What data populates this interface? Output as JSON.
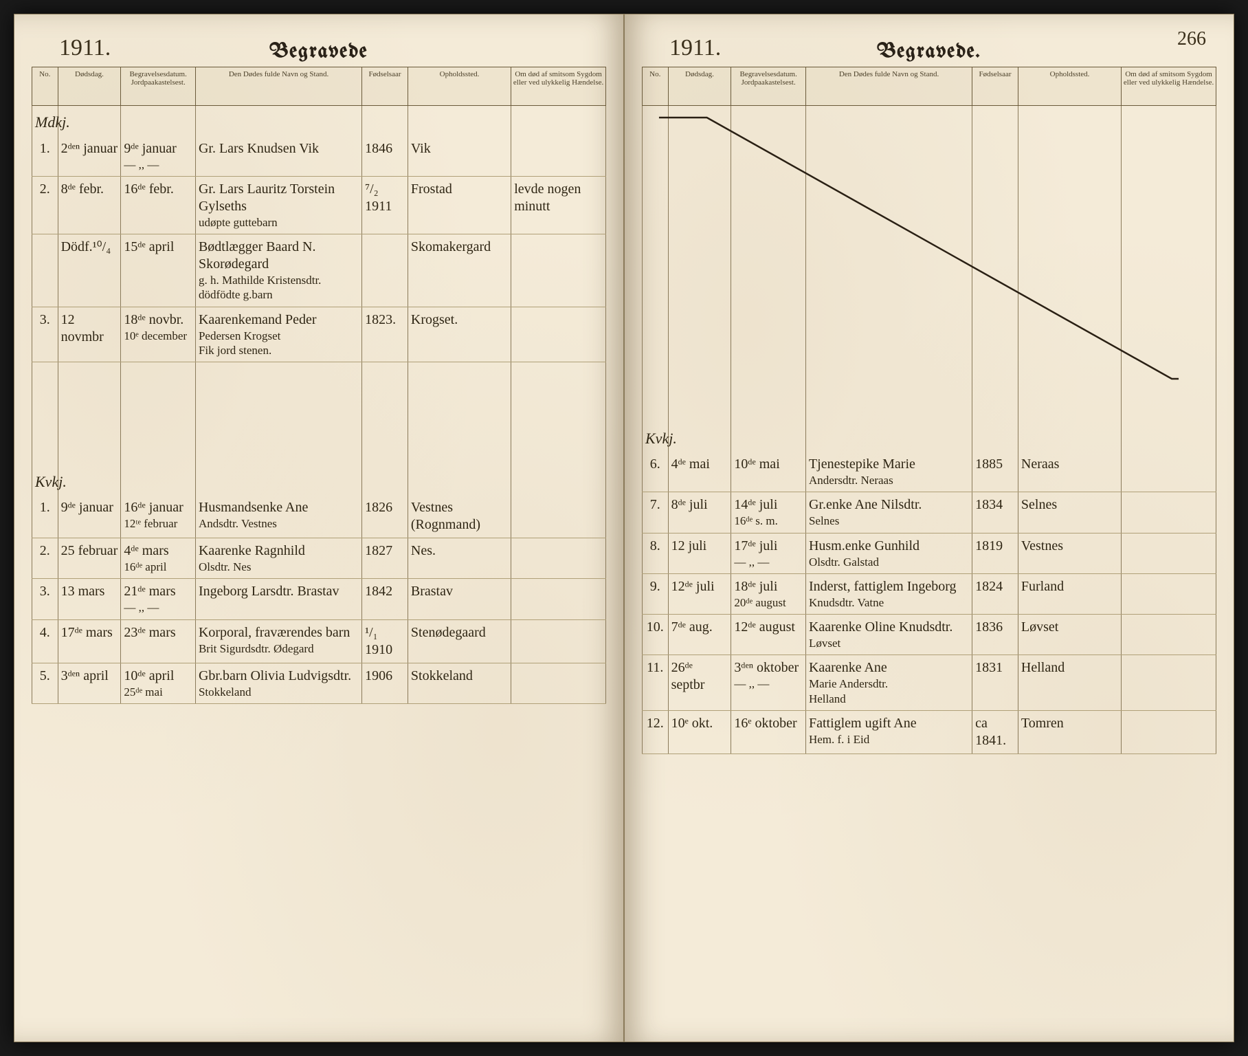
{
  "page_number": "266",
  "left": {
    "year": "1911.",
    "title": "Begravede",
    "columns": [
      "No.",
      "Dødsdag.",
      "Begravelsesdatum. Jordpaakastelsest.",
      "Den Dødes fulde Navn og Stand.",
      "Fødselsaar",
      "Opholdssted.",
      "Om død af smitsom Sygdom eller ved ulykke­lig Hændelse."
    ],
    "section1_label": "Mdkj.",
    "section1_rows": [
      {
        "no": "1.",
        "death": "2ᵈᵉⁿ januar",
        "burial": "9ᵈᵉ januar\n— ,, —",
        "name": "Gr. Lars Knudsen Vik",
        "year": "1846",
        "place": "Vik",
        "rem": ""
      },
      {
        "no": "2.",
        "death": "8ᵈᵉ febr.",
        "burial": "16ᵈᵉ febr.",
        "name": "Gr. Lars Lauritz Torstein Gylseths\nudøpte guttebarn",
        "year": "⁷/₂ 1911",
        "place": "Frostad",
        "rem": "levde nogen minutt"
      },
      {
        "no": "",
        "death": "Dödf.¹⁰/₄",
        "burial": "15ᵈᵉ april",
        "name": "Bødtlægger Baard N. Skorødegard\ng. h. Mathilde Kristensdtr.\ndödfödte g.barn",
        "year": "",
        "place": "Skomakergard",
        "rem": ""
      },
      {
        "no": "3.",
        "death": "12 novmbr",
        "burial": "18ᵈᵉ novbr.\n10ᵉ december",
        "name": "Kaarenkemand Peder\nPedersen Krogset\nFik jord stenen.",
        "year": "1823.",
        "place": "Krogset.",
        "rem": ""
      }
    ],
    "section2_label": "Kvkj.",
    "section2_rows": [
      {
        "no": "1.",
        "death": "9ᵈᵉ januar",
        "burial": "16ᵈᵉ januar\n12ᵗᵉ februar",
        "name": "Husmandsenke Ane\nAndsdtr. Vestnes",
        "year": "1826",
        "place": "Vestnes (Rognmand)",
        "rem": ""
      },
      {
        "no": "2.",
        "death": "25 februar",
        "burial": "4ᵈᵉ mars\n16ᵈᵉ april",
        "name": "Kaarenke Ragnhild\nOlsdtr. Nes",
        "year": "1827",
        "place": "Nes.",
        "rem": ""
      },
      {
        "no": "3.",
        "death": "13 mars",
        "burial": "21ᵈᵉ mars\n— ,, —",
        "name": "Ingeborg Larsdtr. Brastav",
        "year": "1842",
        "place": "Brastav",
        "rem": ""
      },
      {
        "no": "4.",
        "death": "17ᵈᵉ mars",
        "burial": "23ᵈᵉ mars",
        "name": "Korporal, fraværendes barn\nBrit Sigurdsdtr. Ødegard",
        "year": "¹/₁ 1910",
        "place": "Stenødegaard",
        "rem": ""
      },
      {
        "no": "5.",
        "death": "3ᵈᵉⁿ april",
        "burial": "10ᵈᵉ april\n25ᵈᵉ mai",
        "name": "Gbr.barn Olivia Ludvigsdtr.\nStokkeland",
        "year": "1906",
        "place": "Stokkeland",
        "rem": ""
      }
    ]
  },
  "right": {
    "year": "1911.",
    "title": "Begravede.",
    "columns": [
      "No.",
      "Dødsdag.",
      "Begravelsesdatum. Jordpaakastelsest.",
      "Den Dødes fulde Navn og Stand.",
      "Fødselsaar",
      "Opholdssted.",
      "Om død af smitsom Sygdom eller ved ulykke­lig Hændelse."
    ],
    "section_label": "Kvkj.",
    "rows": [
      {
        "no": "6.",
        "death": "4ᵈᵉ mai",
        "burial": "10ᵈᵉ mai",
        "name": "Tjenestepike Marie\nAndersdtr. Neraas",
        "year": "1885",
        "place": "Neraas",
        "rem": ""
      },
      {
        "no": "7.",
        "death": "8ᵈᵉ juli",
        "burial": "14ᵈᵉ juli\n16ᵈᵉ s. m.",
        "name": "Gr.enke Ane Nilsdtr.\nSelnes",
        "year": "1834",
        "place": "Selnes",
        "rem": ""
      },
      {
        "no": "8.",
        "death": "12 juli",
        "burial": "17ᵈᵉ juli\n— ,, —",
        "name": "Husm.enke Gunhild\nOlsdtr. Galstad",
        "year": "1819",
        "place": "Vestnes",
        "rem": ""
      },
      {
        "no": "9.",
        "death": "12ᵈᵉ juli",
        "burial": "18ᵈᵉ juli\n20ᵈᵉ august",
        "name": "Inderst, fattiglem Ingeborg\nKnudsdtr. Vatne",
        "year": "1824",
        "place": "Furland",
        "rem": ""
      },
      {
        "no": "10.",
        "death": "7ᵈᵉ aug.",
        "burial": "12ᵈᵉ august",
        "name": "Kaarenke Oline Knudsdtr.\nLøvset",
        "year": "1836",
        "place": "Løvset",
        "rem": ""
      },
      {
        "no": "11.",
        "death": "26ᵈᵉ septbr",
        "burial": "3ᵈᵉⁿ oktober\n— ,, —",
        "name": "Kaarenke Ane\nMarie Andersdtr.\nHelland",
        "year": "1831",
        "place": "Helland",
        "rem": ""
      },
      {
        "no": "12.",
        "death": "10ᵉ okt.",
        "burial": "16ᵉ oktober",
        "name": "Fattiglem ugift Ane\nHem. f. i Eid",
        "year": "ca 1841.",
        "place": "Tomren",
        "rem": ""
      }
    ],
    "diagonal": {
      "stroke": "#2a2014",
      "width": 2
    }
  },
  "style": {
    "paper_bg": "#f4ebd8",
    "ink": "#2f2614",
    "rule": "#8a7a5a",
    "header_font": "Old English Text MT",
    "body_font": "cursive",
    "year_fontsize": 34,
    "title_fontsize": 30,
    "cell_fontsize": 20
  }
}
